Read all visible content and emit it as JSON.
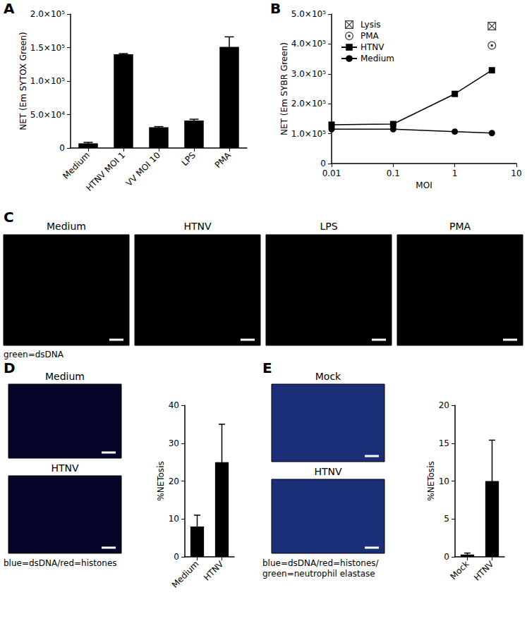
{
  "chart_data": [
    {
      "type": "bar",
      "title": "A",
      "categories": [
        "Medium",
        "HTNV MOI 1",
        "VV MOI 10",
        "LPS",
        "PMA"
      ],
      "values": [
        7000,
        140000,
        31000,
        41000,
        151000
      ],
      "errors": [
        1500,
        1000,
        1000,
        2000,
        15000
      ],
      "color": "#000000",
      "y_label": "NET (Em SYTOX Green)",
      "ylim": [
        0,
        200000
      ],
      "yticks": [
        0,
        {
          "value": 50000,
          "label": "5.0×10⁴"
        },
        {
          "value": 100000,
          "label": "1.0×10⁵"
        },
        {
          "value": 150000,
          "label": "1.5×10⁵"
        },
        {
          "value": 200000,
          "label": "2.0×10⁵"
        }
      ],
      "grid": false
    },
    {
      "type": "line",
      "title": "B",
      "x_label": "MOI",
      "y_label": "NET (Em SYBR Green)",
      "log": "x",
      "xlim": [
        0.01,
        10
      ],
      "xticks": [
        0.01,
        0.1,
        1,
        10
      ],
      "ylim": [
        0,
        500000
      ],
      "yticks": [
        0,
        {
          "value": 100000,
          "label": "1.0×10⁵"
        },
        {
          "value": 200000,
          "label": "2.0×10⁵"
        },
        {
          "value": 300000,
          "label": "3.0×10⁵"
        },
        {
          "value": 400000,
          "label": "4.0×10⁵"
        },
        {
          "value": 500000,
          "label": "5.0×10⁵"
        }
      ],
      "grid": false,
      "legend": "upper left",
      "series": [
        {
          "name": "Lysis",
          "type": "scatter",
          "marker": "crossed_square",
          "color": "#000000",
          "x": [
            4
          ],
          "values": [
            460000
          ]
        },
        {
          "name": "PMA",
          "type": "scatter",
          "marker": "dotted_circle",
          "color": "#000000",
          "x": [
            4
          ],
          "values": [
            395000
          ]
        },
        {
          "name": "HTNV",
          "type": "line",
          "marker": "square",
          "line_style": "solid",
          "color": "#000000",
          "x": [
            0.01,
            0.1,
            1,
            4
          ],
          "values": [
            130000,
            132000,
            233000,
            312000
          ]
        },
        {
          "name": "Medium",
          "type": "line",
          "marker": "circle",
          "line_style": "solid",
          "color": "#000000",
          "x": [
            0.01,
            0.1,
            1,
            4
          ],
          "values": [
            115000,
            115000,
            107000,
            102000
          ]
        }
      ]
    },
    {
      "type": "bar",
      "categories": [
        "Medium",
        "HTNV"
      ],
      "values": [
        8,
        25
      ],
      "errors": [
        3,
        10
      ],
      "color": "#000000",
      "y_label": "%NETosis",
      "ylim": [
        0,
        40
      ],
      "yticks": [
        0,
        10,
        20,
        30,
        40
      ],
      "grid": false
    },
    {
      "type": "bar",
      "categories": [
        "Mock",
        "HTNV"
      ],
      "values": [
        0.3,
        10
      ],
      "errors": [
        0.2,
        5.4
      ],
      "color": "#000000",
      "y_label": "%NETosis",
      "ylim": [
        0,
        20
      ],
      "yticks": [
        0,
        5,
        10,
        15,
        20
      ],
      "grid": false
    }
  ],
  "image_panels": [
    {
      "panel": "C",
      "images": [
        "Medium",
        "HTNV",
        "LPS",
        "PMA"
      ],
      "caption": [
        "green=dsDNA"
      ]
    },
    {
      "panel": "D",
      "images": [
        "Medium",
        "HTNV"
      ],
      "caption": [
        "blue=dsDNA/red=histones"
      ]
    },
    {
      "panel": "E",
      "images": [
        "Mock",
        "HTNV"
      ],
      "caption": [
        "blue=dsDNA/red=histones/",
        "green=neutrophil elastase"
      ]
    }
  ]
}
